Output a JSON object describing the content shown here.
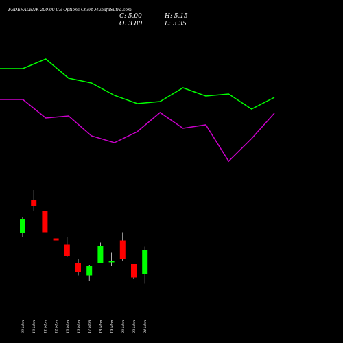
{
  "chart_data": {
    "type": "candlestick",
    "title": "FEDERALBNK 200.00 CE Options Chart MunafaSutra.com",
    "ohlc_summary": {
      "open_label": "O: 3.80",
      "close_label": "C: 5.00",
      "high_label": "H: 5.15",
      "low_label": "L: 3.35"
    },
    "colors": {
      "background": "#000000",
      "up": "#00ff00",
      "down": "#ff0000",
      "wick": "#ffffff",
      "upper_line": "#00ff00",
      "lower_line": "#cc00cc",
      "text": "#ffffff"
    },
    "categories": [
      "09 Mon",
      "10 Mon",
      "11 Mon",
      "12 Mon",
      "13 Mon",
      "16 Mon",
      "17 Mon",
      "18 Mon",
      "19 Mon",
      "20 Mon",
      "23 Mon",
      "24 Mon"
    ],
    "candles": [
      {
        "date": "09 Mon",
        "open": 5.8,
        "high": 6.6,
        "low": 5.6,
        "close": 6.5
      },
      {
        "date": "10 Mon",
        "open": 7.4,
        "high": 7.9,
        "low": 6.9,
        "close": 7.1
      },
      {
        "date": "11 Mon",
        "open": 6.9,
        "high": 6.95,
        "low": 5.8,
        "close": 5.85
      },
      {
        "date": "12 Mon",
        "open": 5.55,
        "high": 5.8,
        "low": 5.0,
        "close": 5.45
      },
      {
        "date": "13 Mon",
        "open": 5.25,
        "high": 5.6,
        "low": 4.65,
        "close": 4.7
      },
      {
        "date": "16 Mon",
        "open": 4.35,
        "high": 4.55,
        "low": 3.75,
        "close": 3.9
      },
      {
        "date": "17 Mon",
        "open": 3.75,
        "high": 4.25,
        "low": 3.5,
        "close": 4.2
      },
      {
        "date": "18 Mon",
        "open": 4.35,
        "high": 5.35,
        "low": 4.35,
        "close": 5.2
      },
      {
        "date": "19 Mon",
        "open": 4.4,
        "high": 4.85,
        "low": 4.2,
        "close": 4.45
      },
      {
        "date": "20 Mon",
        "open": 5.45,
        "high": 5.85,
        "low": 4.45,
        "close": 4.55
      },
      {
        "date": "23 Mon",
        "open": 4.3,
        "high": 4.3,
        "low": 3.6,
        "close": 3.65
      },
      {
        "date": "24 Mon",
        "open": 3.8,
        "high": 5.15,
        "low": 3.35,
        "close": 5.0
      }
    ],
    "price_range": [
      2.8,
      8.8
    ],
    "upper_line": [
      100,
      100,
      86,
      114,
      121,
      139,
      151,
      148,
      128,
      140,
      137,
      159,
      142
    ],
    "lower_line": [
      145,
      145,
      172,
      169,
      198,
      208,
      192,
      164,
      187,
      182,
      235,
      202,
      165
    ],
    "line_range": [
      0,
      300
    ]
  }
}
